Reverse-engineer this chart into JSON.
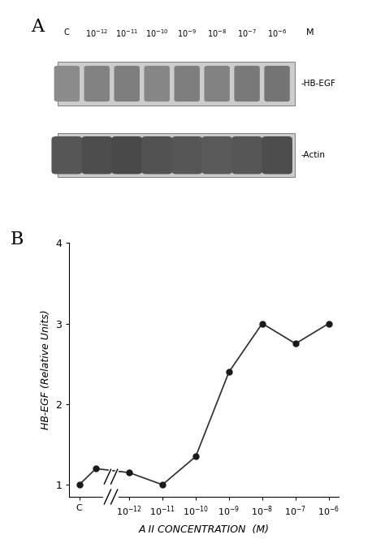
{
  "panel_A_label": "A",
  "panel_B_label": "B",
  "hbegf_label": "-HB-EGF",
  "actin_label": "-Actin",
  "y_values": [
    1.0,
    1.2,
    1.15,
    1.0,
    1.35,
    2.4,
    3.0,
    2.75,
    3.0
  ],
  "y_values_x": [
    -0.5,
    0,
    1,
    2,
    3,
    4,
    5,
    6,
    7
  ],
  "ylim": [
    0.85,
    4.0
  ],
  "yticks": [
    1,
    2,
    3,
    4
  ],
  "ylabel": "HB-EGF (Relative Units)",
  "xlabel": "A II CONCENTRATION  (M)",
  "line_color": "#2b2b2b",
  "marker_color": "#1a1a1a",
  "bg_color": "#ffffff"
}
